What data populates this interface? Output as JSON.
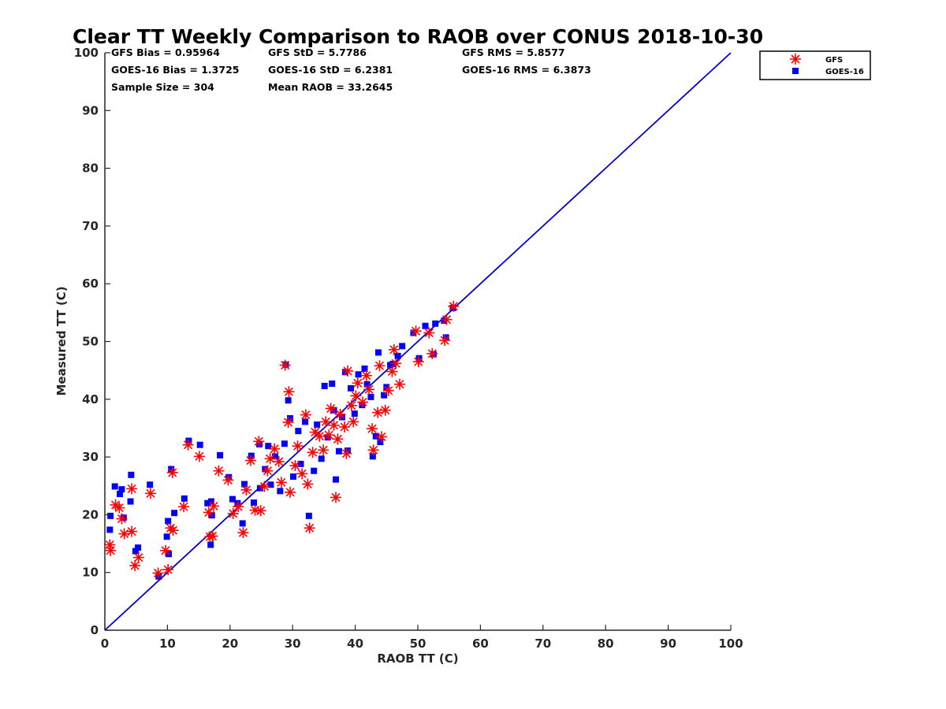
{
  "chart_data": {
    "type": "scatter",
    "title": "Clear TT Weekly Comparison to RAOB over CONUS 2018-10-30",
    "xlabel": "RAOB TT (C)",
    "ylabel": "Measured TT (C)",
    "xlim": [
      0,
      100
    ],
    "ylim": [
      0,
      100
    ],
    "xticks": [
      "0",
      "10",
      "20",
      "30",
      "40",
      "50",
      "60",
      "70",
      "80",
      "90",
      "100"
    ],
    "yticks": [
      "0",
      "10",
      "20",
      "30",
      "40",
      "50",
      "60",
      "70",
      "80",
      "90",
      "100"
    ],
    "stats": [
      [
        "GFS Bias = 0.95964",
        "GFS StD = 5.7786",
        "GFS RMS = 5.8577"
      ],
      [
        "GOES-16 Bias = 1.3725",
        "GOES-16 StD = 6.2381",
        "GOES-16 RMS = 6.3873"
      ],
      [
        "Sample Size = 304",
        "Mean RAOB = 33.2645"
      ]
    ],
    "reference_line": {
      "from": [
        0,
        0
      ],
      "to": [
        100,
        100
      ],
      "color": "#0000cc"
    },
    "legend": {
      "position": "outside-top-right",
      "entries": [
        "GFS",
        "GOES-16"
      ]
    },
    "series": [
      {
        "name": "GFS",
        "marker": "asterisk",
        "color": "#ff0000",
        "points": [
          [
            0.8,
            14.8
          ],
          [
            0.9,
            13.8
          ],
          [
            1.7,
            21.7
          ],
          [
            2.3,
            21.2
          ],
          [
            2.7,
            19.3
          ],
          [
            3.1,
            16.7
          ],
          [
            4.3,
            24.5
          ],
          [
            4.3,
            17.1
          ],
          [
            4.8,
            11.2
          ],
          [
            5.4,
            12.6
          ],
          [
            7.3,
            23.7
          ],
          [
            8.5,
            9.9
          ],
          [
            9.7,
            13.8
          ],
          [
            10.1,
            10.5
          ],
          [
            10.5,
            17.7
          ],
          [
            10.8,
            27.3
          ],
          [
            10.9,
            17.3
          ],
          [
            12.6,
            21.4
          ],
          [
            13.3,
            32.1
          ],
          [
            15.1,
            30.1
          ],
          [
            16.6,
            20.4
          ],
          [
            16.8,
            16.2
          ],
          [
            17.2,
            16.3
          ],
          [
            17.4,
            21.5
          ],
          [
            18.2,
            27.6
          ],
          [
            19.7,
            26.0
          ],
          [
            20.5,
            20.2
          ],
          [
            21.3,
            21.4
          ],
          [
            22.1,
            16.9
          ],
          [
            22.6,
            24.3
          ],
          [
            23.3,
            29.4
          ],
          [
            24.0,
            20.8
          ],
          [
            24.6,
            32.7
          ],
          [
            24.9,
            20.7
          ],
          [
            25.5,
            24.9
          ],
          [
            26.0,
            27.6
          ],
          [
            26.4,
            29.7
          ],
          [
            27.1,
            31.4
          ],
          [
            27.8,
            29.2
          ],
          [
            28.2,
            25.6
          ],
          [
            28.8,
            45.9
          ],
          [
            29.3,
            36.0
          ],
          [
            29.4,
            41.3
          ],
          [
            29.6,
            23.9
          ],
          [
            30.4,
            28.5
          ],
          [
            30.8,
            31.9
          ],
          [
            31.5,
            27.1
          ],
          [
            32.1,
            37.3
          ],
          [
            32.4,
            25.3
          ],
          [
            32.7,
            17.7
          ],
          [
            33.2,
            30.8
          ],
          [
            33.6,
            34.3
          ],
          [
            34.3,
            33.6
          ],
          [
            34.9,
            31.2
          ],
          [
            35.3,
            36.1
          ],
          [
            35.8,
            33.8
          ],
          [
            36.1,
            38.4
          ],
          [
            36.6,
            35.5
          ],
          [
            36.9,
            23.0
          ],
          [
            37.2,
            33.1
          ],
          [
            37.6,
            37.4
          ],
          [
            38.3,
            35.2
          ],
          [
            38.6,
            30.6
          ],
          [
            38.8,
            44.9
          ],
          [
            39.4,
            38.9
          ],
          [
            39.7,
            36.1
          ],
          [
            40.1,
            40.6
          ],
          [
            40.4,
            42.8
          ],
          [
            41.2,
            39.5
          ],
          [
            41.8,
            44.1
          ],
          [
            42.2,
            41.7
          ],
          [
            42.7,
            34.9
          ],
          [
            42.9,
            31.2
          ],
          [
            43.6,
            37.7
          ],
          [
            43.9,
            45.8
          ],
          [
            44.2,
            33.5
          ],
          [
            44.8,
            38.1
          ],
          [
            45.3,
            41.5
          ],
          [
            45.9,
            44.8
          ],
          [
            46.2,
            48.6
          ],
          [
            46.5,
            46.2
          ],
          [
            47.1,
            42.6
          ],
          [
            49.7,
            51.8
          ],
          [
            50.1,
            46.5
          ],
          [
            51.8,
            51.5
          ],
          [
            52.3,
            47.9
          ],
          [
            54.3,
            50.2
          ],
          [
            54.6,
            53.8
          ],
          [
            55.7,
            56.1
          ]
        ]
      },
      {
        "name": "GOES-16",
        "marker": "square",
        "color": "#0000ff",
        "points": [
          [
            0.9,
            19.8
          ],
          [
            0.8,
            17.4
          ],
          [
            1.6,
            24.9
          ],
          [
            2.4,
            23.6
          ],
          [
            2.7,
            24.4
          ],
          [
            3.0,
            19.5
          ],
          [
            4.2,
            26.9
          ],
          [
            4.1,
            22.3
          ],
          [
            4.9,
            13.7
          ],
          [
            5.3,
            14.3
          ],
          [
            7.2,
            25.2
          ],
          [
            8.6,
            9.3
          ],
          [
            9.9,
            16.2
          ],
          [
            10.2,
            13.2
          ],
          [
            10.1,
            18.9
          ],
          [
            10.6,
            27.9
          ],
          [
            11.1,
            20.3
          ],
          [
            12.7,
            22.8
          ],
          [
            13.4,
            32.8
          ],
          [
            15.2,
            32.1
          ],
          [
            16.4,
            22.0
          ],
          [
            16.9,
            14.8
          ],
          [
            17.0,
            22.3
          ],
          [
            17.1,
            19.9
          ],
          [
            18.4,
            30.3
          ],
          [
            19.8,
            26.5
          ],
          [
            20.4,
            22.7
          ],
          [
            21.2,
            22.0
          ],
          [
            22.0,
            18.5
          ],
          [
            22.3,
            25.3
          ],
          [
            23.4,
            30.2
          ],
          [
            23.8,
            22.1
          ],
          [
            24.7,
            32.2
          ],
          [
            24.8,
            24.6
          ],
          [
            25.6,
            27.9
          ],
          [
            26.1,
            31.9
          ],
          [
            26.5,
            25.2
          ],
          [
            27.2,
            30.1
          ],
          [
            28.0,
            24.1
          ],
          [
            28.7,
            32.3
          ],
          [
            28.9,
            46.0
          ],
          [
            29.3,
            39.8
          ],
          [
            29.6,
            36.7
          ],
          [
            30.1,
            26.6
          ],
          [
            30.9,
            34.5
          ],
          [
            31.3,
            28.8
          ],
          [
            32.0,
            36.1
          ],
          [
            32.6,
            19.8
          ],
          [
            33.4,
            27.6
          ],
          [
            33.9,
            35.6
          ],
          [
            34.6,
            29.7
          ],
          [
            35.1,
            42.3
          ],
          [
            35.6,
            33.4
          ],
          [
            36.3,
            42.7
          ],
          [
            36.6,
            38.1
          ],
          [
            36.9,
            26.1
          ],
          [
            37.4,
            31.0
          ],
          [
            37.9,
            36.9
          ],
          [
            38.4,
            44.7
          ],
          [
            38.8,
            31.1
          ],
          [
            39.3,
            41.9
          ],
          [
            39.9,
            37.5
          ],
          [
            40.5,
            44.3
          ],
          [
            41.1,
            39.0
          ],
          [
            41.5,
            45.3
          ],
          [
            41.9,
            42.6
          ],
          [
            42.5,
            40.4
          ],
          [
            42.8,
            30.1
          ],
          [
            43.3,
            33.6
          ],
          [
            43.7,
            48.1
          ],
          [
            44.0,
            32.6
          ],
          [
            44.6,
            40.7
          ],
          [
            45.0,
            42.1
          ],
          [
            45.6,
            45.9
          ],
          [
            46.0,
            46.1
          ],
          [
            46.8,
            47.5
          ],
          [
            47.5,
            49.2
          ],
          [
            49.3,
            51.5
          ],
          [
            50.2,
            47.1
          ],
          [
            51.2,
            52.7
          ],
          [
            52.5,
            47.8
          ],
          [
            52.8,
            53.1
          ],
          [
            54.2,
            53.6
          ],
          [
            54.5,
            50.7
          ],
          [
            55.6,
            55.8
          ]
        ]
      }
    ]
  }
}
